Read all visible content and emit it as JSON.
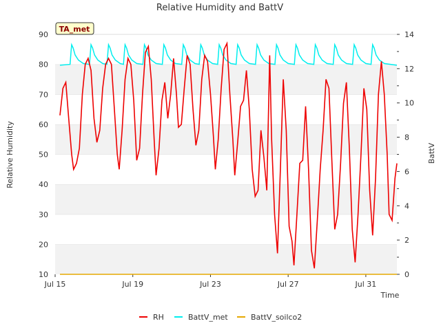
{
  "chart_data": {
    "type": "line",
    "title": "Relative Humidity and BattV",
    "badge": "TA_met",
    "xlabel": "Time",
    "ylabel_left": "Relative Humidity",
    "ylabel_right": "BattV",
    "x_ticks": [
      "Jul 15",
      "Jul 19",
      "Jul 23",
      "Jul 27",
      "Jul 31"
    ],
    "x_tick_days": [
      0,
      4,
      8,
      12,
      16
    ],
    "xlim_days": [
      0,
      17.6
    ],
    "ylim_left": [
      10,
      90
    ],
    "y_ticks_left": [
      10,
      20,
      30,
      40,
      50,
      60,
      70,
      80,
      90
    ],
    "ylim_right": [
      0,
      14
    ],
    "y_ticks_right": [
      0,
      2,
      4,
      6,
      8,
      10,
      12,
      14
    ],
    "grid": "horizontal alternating bands",
    "legend_position": "bottom",
    "series": [
      {
        "name": "RH",
        "axis": "left",
        "color": "#ee0000",
        "points": [
          [
            0.25,
            63
          ],
          [
            0.4,
            72
          ],
          [
            0.55,
            74
          ],
          [
            0.7,
            62
          ],
          [
            0.85,
            50
          ],
          [
            0.95,
            45
          ],
          [
            1.1,
            47
          ],
          [
            1.25,
            52
          ],
          [
            1.4,
            70
          ],
          [
            1.55,
            80
          ],
          [
            1.7,
            82
          ],
          [
            1.85,
            78
          ],
          [
            2.0,
            62
          ],
          [
            2.15,
            54
          ],
          [
            2.3,
            58
          ],
          [
            2.45,
            72
          ],
          [
            2.6,
            80
          ],
          [
            2.75,
            82
          ],
          [
            2.9,
            80
          ],
          [
            3.05,
            65
          ],
          [
            3.2,
            50
          ],
          [
            3.3,
            45
          ],
          [
            3.45,
            58
          ],
          [
            3.6,
            75
          ],
          [
            3.75,
            82
          ],
          [
            3.9,
            80
          ],
          [
            4.05,
            68
          ],
          [
            4.2,
            48
          ],
          [
            4.35,
            52
          ],
          [
            4.5,
            70
          ],
          [
            4.65,
            84
          ],
          [
            4.8,
            86
          ],
          [
            4.95,
            75
          ],
          [
            5.1,
            55
          ],
          [
            5.2,
            43
          ],
          [
            5.35,
            52
          ],
          [
            5.5,
            68
          ],
          [
            5.65,
            74
          ],
          [
            5.8,
            62
          ],
          [
            5.95,
            70
          ],
          [
            6.1,
            82
          ],
          [
            6.25,
            70
          ],
          [
            6.35,
            59
          ],
          [
            6.5,
            60
          ],
          [
            6.65,
            72
          ],
          [
            6.8,
            83
          ],
          [
            6.95,
            80
          ],
          [
            7.1,
            65
          ],
          [
            7.25,
            53
          ],
          [
            7.4,
            58
          ],
          [
            7.55,
            75
          ],
          [
            7.7,
            83
          ],
          [
            7.85,
            81
          ],
          [
            8.0,
            70
          ],
          [
            8.15,
            56
          ],
          [
            8.25,
            45
          ],
          [
            8.4,
            55
          ],
          [
            8.55,
            72
          ],
          [
            8.7,
            85
          ],
          [
            8.85,
            87
          ],
          [
            9.0,
            70
          ],
          [
            9.15,
            55
          ],
          [
            9.25,
            43
          ],
          [
            9.4,
            54
          ],
          [
            9.55,
            66
          ],
          [
            9.7,
            68
          ],
          [
            9.85,
            78
          ],
          [
            10.0,
            65
          ],
          [
            10.15,
            45
          ],
          [
            10.3,
            36
          ],
          [
            10.45,
            38
          ],
          [
            10.6,
            58
          ],
          [
            10.75,
            49
          ],
          [
            10.9,
            38
          ],
          [
            11.05,
            83
          ],
          [
            11.15,
            55
          ],
          [
            11.3,
            30
          ],
          [
            11.45,
            17
          ],
          [
            11.6,
            45
          ],
          [
            11.75,
            75
          ],
          [
            11.9,
            58
          ],
          [
            12.05,
            26
          ],
          [
            12.2,
            21
          ],
          [
            12.3,
            13
          ],
          [
            12.45,
            30
          ],
          [
            12.6,
            47
          ],
          [
            12.75,
            48
          ],
          [
            12.9,
            66
          ],
          [
            13.05,
            45
          ],
          [
            13.2,
            18
          ],
          [
            13.35,
            12
          ],
          [
            13.5,
            28
          ],
          [
            13.65,
            45
          ],
          [
            13.8,
            58
          ],
          [
            13.95,
            75
          ],
          [
            14.1,
            72
          ],
          [
            14.25,
            48
          ],
          [
            14.4,
            25
          ],
          [
            14.55,
            30
          ],
          [
            14.7,
            47
          ],
          [
            14.85,
            67
          ],
          [
            15.0,
            74
          ],
          [
            15.15,
            52
          ],
          [
            15.3,
            25
          ],
          [
            15.45,
            14
          ],
          [
            15.6,
            30
          ],
          [
            15.75,
            50
          ],
          [
            15.9,
            72
          ],
          [
            16.05,
            65
          ],
          [
            16.2,
            38
          ],
          [
            16.35,
            23
          ],
          [
            16.5,
            42
          ],
          [
            16.65,
            70
          ],
          [
            16.8,
            81
          ],
          [
            16.95,
            70
          ],
          [
            17.1,
            50
          ],
          [
            17.2,
            30
          ],
          [
            17.35,
            28
          ],
          [
            17.5,
            42
          ],
          [
            17.6,
            47
          ]
        ]
      },
      {
        "name": "BattV_met",
        "axis": "right",
        "color": "#00eeee",
        "pattern": {
          "baseline": 12.2,
          "peak": 13.4,
          "peak_days": [
            0.85,
            1.85,
            2.75,
            3.6,
            4.6,
            5.6,
            6.6,
            7.5,
            8.45,
            9.4,
            10.4,
            11.4,
            12.4,
            13.4,
            14.4,
            15.4,
            16.35
          ],
          "end": 17.6
        }
      },
      {
        "name": "BattV_soilco2",
        "axis": "right",
        "color": "#e6a800",
        "points": [
          [
            0.25,
            0
          ],
          [
            17.6,
            0
          ]
        ]
      }
    ]
  }
}
